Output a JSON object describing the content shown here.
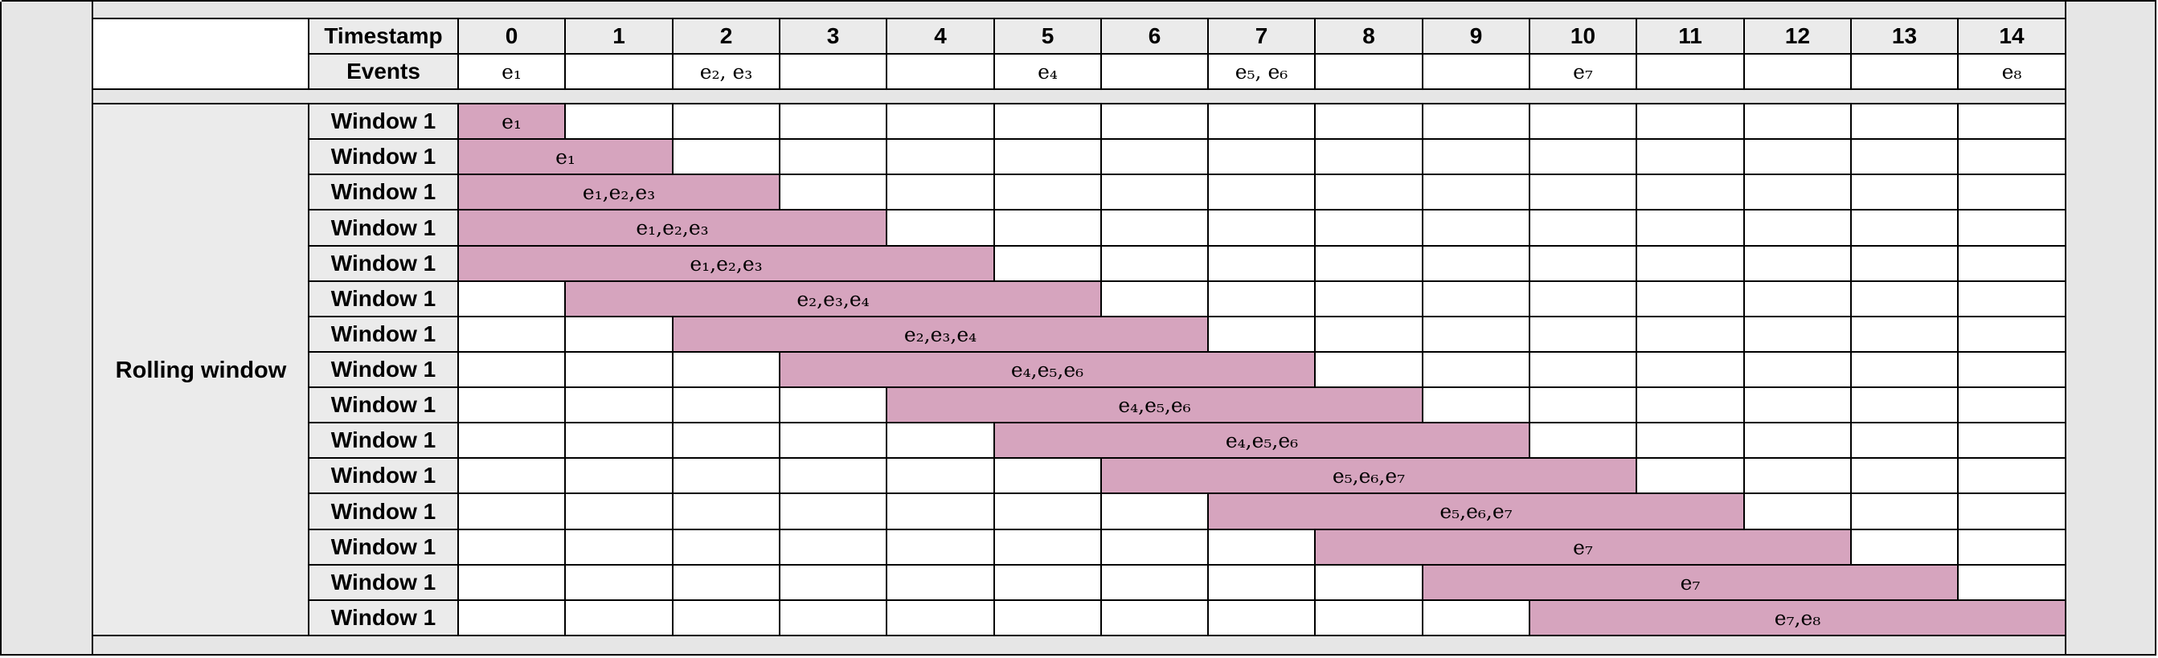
{
  "header": {
    "timestamp_label": "Timestamp",
    "events_label": "Events",
    "timestamps": [
      "0",
      "1",
      "2",
      "3",
      "4",
      "5",
      "6",
      "7",
      "8",
      "9",
      "10",
      "11",
      "12",
      "13",
      "14"
    ],
    "events": [
      "e₁",
      "",
      "e₂, e₃",
      "",
      "",
      "e₄",
      "",
      "e₅, e₆",
      "",
      "",
      "e₇",
      "",
      "",
      "",
      "e₈"
    ]
  },
  "group_label": "Rolling window",
  "windows": [
    {
      "label": "Window 1",
      "start": 0,
      "end": 0,
      "events": "e₁"
    },
    {
      "label": "Window 1",
      "start": 0,
      "end": 1,
      "events": "e₁"
    },
    {
      "label": "Window 1",
      "start": 0,
      "end": 2,
      "events": "e₁,e₂,e₃"
    },
    {
      "label": "Window 1",
      "start": 0,
      "end": 3,
      "events": "e₁,e₂,e₃"
    },
    {
      "label": "Window 1",
      "start": 0,
      "end": 4,
      "events": "e₁,e₂,e₃"
    },
    {
      "label": "Window 1",
      "start": 1,
      "end": 5,
      "events": "e₂,e₃,e₄"
    },
    {
      "label": "Window 1",
      "start": 2,
      "end": 6,
      "events": "e₂,e₃,e₄"
    },
    {
      "label": "Window 1",
      "start": 3,
      "end": 7,
      "events": "e₄,e₅,e₆"
    },
    {
      "label": "Window 1",
      "start": 4,
      "end": 8,
      "events": "e₄,e₅,e₆"
    },
    {
      "label": "Window 1",
      "start": 5,
      "end": 9,
      "events": "e₄,e₅,e₆"
    },
    {
      "label": "Window 1",
      "start": 6,
      "end": 10,
      "events": "e₅,e₆,e₇"
    },
    {
      "label": "Window 1",
      "start": 7,
      "end": 11,
      "events": "e₅,e₆,e₇"
    },
    {
      "label": "Window 1",
      "start": 8,
      "end": 12,
      "events": "e₇"
    },
    {
      "label": "Window 1",
      "start": 9,
      "end": 13,
      "events": "e₇"
    },
    {
      "label": "Window 1",
      "start": 10,
      "end": 14,
      "events": "e₇,e₈"
    }
  ],
  "colors": {
    "window_fill": "#d6a4be",
    "header_fill": "#ebebeb",
    "margin_fill": "#e6e6e6"
  }
}
